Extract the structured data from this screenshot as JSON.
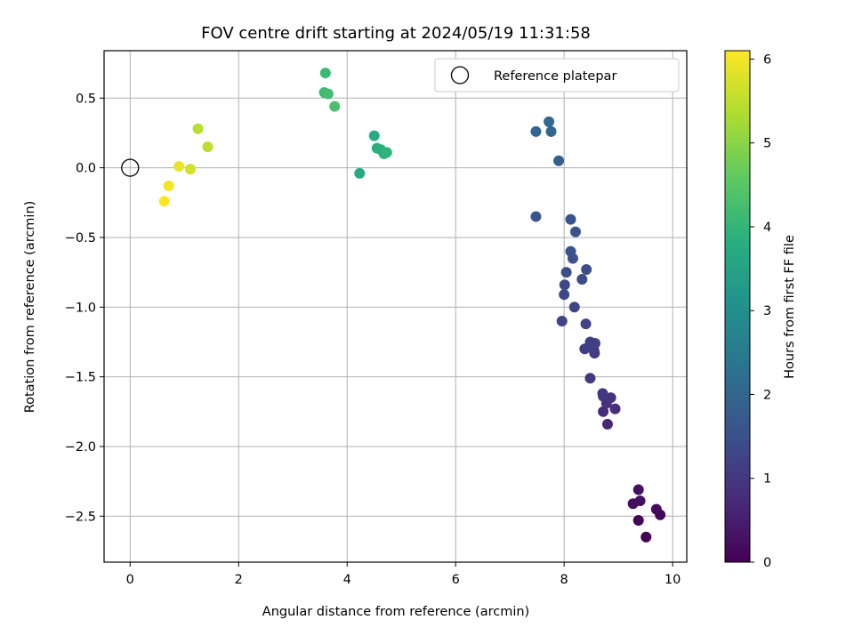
{
  "chart_data": {
    "type": "scatter",
    "title": "FOV centre drift starting at 2024/05/19 11:31:58",
    "xlabel": "Angular distance from reference (arcmin)",
    "ylabel": "Rotation from reference (arcmin)",
    "xlim": [
      -0.48,
      10.26
    ],
    "ylim": [
      -2.83,
      0.84
    ],
    "xticks": [
      0,
      2,
      4,
      6,
      8,
      10
    ],
    "yticks": [
      0.5,
      0.0,
      -0.5,
      -1.0,
      -1.5,
      -2.0,
      -2.5
    ],
    "xtick_labels": [
      "0",
      "2",
      "4",
      "6",
      "8",
      "10"
    ],
    "ytick_labels": [
      "0.5",
      "0.0",
      "−0.5",
      "−1.0",
      "−1.5",
      "−2.0",
      "−2.5"
    ],
    "grid": true,
    "legend": {
      "placement": "upper-right",
      "entries": [
        "Reference platepar"
      ]
    },
    "reference_point": {
      "x": 0,
      "y": 0,
      "marker": "open-circle"
    },
    "colorbar": {
      "label": "Hours from first FF file",
      "colormap": "viridis",
      "range": [
        0,
        6.1
      ],
      "ticks": [
        0,
        1,
        2,
        3,
        4,
        5,
        6
      ],
      "tick_labels": [
        "0",
        "1",
        "2",
        "3",
        "4",
        "5",
        "6"
      ]
    },
    "points": [
      {
        "x": 9.51,
        "y": -2.65,
        "h": 0.0
      },
      {
        "x": 9.37,
        "y": -2.53,
        "h": 0.05
      },
      {
        "x": 9.77,
        "y": -2.49,
        "h": 0.1
      },
      {
        "x": 9.7,
        "y": -2.45,
        "h": 0.15
      },
      {
        "x": 9.27,
        "y": -2.41,
        "h": 0.2
      },
      {
        "x": 9.4,
        "y": -2.39,
        "h": 0.25
      },
      {
        "x": 9.37,
        "y": -2.31,
        "h": 0.3
      },
      {
        "x": 8.8,
        "y": -1.84,
        "h": 0.7
      },
      {
        "x": 8.72,
        "y": -1.75,
        "h": 0.75
      },
      {
        "x": 8.94,
        "y": -1.73,
        "h": 0.8
      },
      {
        "x": 8.78,
        "y": -1.69,
        "h": 0.85
      },
      {
        "x": 8.86,
        "y": -1.65,
        "h": 0.9
      },
      {
        "x": 8.72,
        "y": -1.64,
        "h": 0.93
      },
      {
        "x": 8.71,
        "y": -1.62,
        "h": 0.97
      },
      {
        "x": 8.48,
        "y": -1.51,
        "h": 1.0
      },
      {
        "x": 8.56,
        "y": -1.33,
        "h": 1.05
      },
      {
        "x": 8.55,
        "y": -1.31,
        "h": 1.08
      },
      {
        "x": 8.38,
        "y": -1.3,
        "h": 1.12
      },
      {
        "x": 8.57,
        "y": -1.26,
        "h": 1.15
      },
      {
        "x": 8.48,
        "y": -1.25,
        "h": 1.18
      },
      {
        "x": 8.4,
        "y": -1.12,
        "h": 1.22
      },
      {
        "x": 7.96,
        "y": -1.1,
        "h": 1.25
      },
      {
        "x": 8.19,
        "y": -1.0,
        "h": 1.28
      },
      {
        "x": 8.0,
        "y": -0.91,
        "h": 1.32
      },
      {
        "x": 8.01,
        "y": -0.84,
        "h": 1.35
      },
      {
        "x": 8.33,
        "y": -0.8,
        "h": 1.38
      },
      {
        "x": 8.04,
        "y": -0.75,
        "h": 1.42
      },
      {
        "x": 8.41,
        "y": -0.73,
        "h": 1.45
      },
      {
        "x": 8.16,
        "y": -0.65,
        "h": 1.48
      },
      {
        "x": 8.12,
        "y": -0.6,
        "h": 1.52
      },
      {
        "x": 8.21,
        "y": -0.46,
        "h": 1.55
      },
      {
        "x": 8.12,
        "y": -0.37,
        "h": 1.6
      },
      {
        "x": 7.48,
        "y": -0.35,
        "h": 1.65
      },
      {
        "x": 7.9,
        "y": 0.05,
        "h": 1.85
      },
      {
        "x": 7.48,
        "y": 0.26,
        "h": 1.95
      },
      {
        "x": 7.76,
        "y": 0.26,
        "h": 2.0
      },
      {
        "x": 7.72,
        "y": 0.33,
        "h": 2.05
      },
      {
        "x": 4.23,
        "y": -0.04,
        "h": 3.7
      },
      {
        "x": 4.5,
        "y": 0.23,
        "h": 3.75
      },
      {
        "x": 4.55,
        "y": 0.14,
        "h": 3.8
      },
      {
        "x": 4.62,
        "y": 0.13,
        "h": 3.85
      },
      {
        "x": 4.68,
        "y": 0.1,
        "h": 3.9
      },
      {
        "x": 4.73,
        "y": 0.11,
        "h": 3.95
      },
      {
        "x": 3.6,
        "y": 0.68,
        "h": 4.1
      },
      {
        "x": 3.58,
        "y": 0.54,
        "h": 4.15
      },
      {
        "x": 3.65,
        "y": 0.53,
        "h": 4.2
      },
      {
        "x": 3.77,
        "y": 0.44,
        "h": 4.3
      },
      {
        "x": 1.25,
        "y": 0.28,
        "h": 5.45
      },
      {
        "x": 1.43,
        "y": 0.15,
        "h": 5.5
      },
      {
        "x": 1.11,
        "y": -0.01,
        "h": 5.7
      },
      {
        "x": 0.9,
        "y": 0.01,
        "h": 5.9
      },
      {
        "x": 0.71,
        "y": -0.13,
        "h": 6.0
      },
      {
        "x": 0.63,
        "y": -0.24,
        "h": 6.1
      }
    ]
  }
}
